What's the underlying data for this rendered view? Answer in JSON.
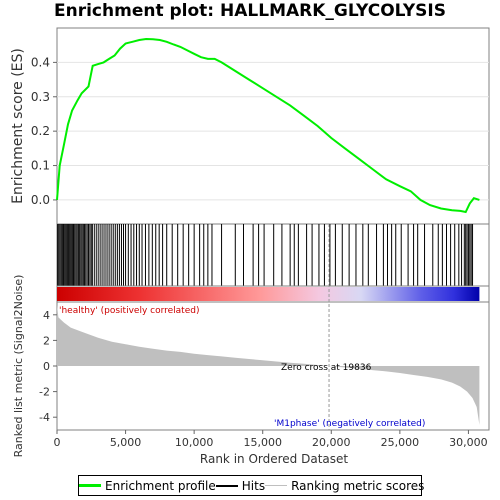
{
  "title": "Enrichment plot: HALLMARK_GLYCOLYSIS",
  "colors": {
    "enrichment": "#00ee00",
    "hits": "#000000",
    "metric_fill": "#bfbfbf",
    "positive_label": "#cc0000",
    "negative_label": "#0000cc"
  },
  "legend": {
    "items": [
      "Enrichment profile",
      "Hits",
      "Ranking metric scores"
    ]
  },
  "chart_data": [
    {
      "type": "line",
      "name": "enrichment-profile",
      "ylabel": "Enrichment score (ES)",
      "xlim": [
        0,
        31500
      ],
      "ylim": [
        -0.07,
        0.5
      ],
      "yticks": [
        0.0,
        0.1,
        0.2,
        0.3,
        0.4
      ],
      "ytick_labels": [
        "0.0",
        "0.1",
        "0.2",
        "0.3",
        "0.4"
      ],
      "grid": true,
      "x": [
        0,
        200,
        500,
        800,
        1100,
        1500,
        1800,
        2300,
        2600,
        3000,
        3400,
        3800,
        4200,
        4600,
        5000,
        5500,
        6000,
        6500,
        7000,
        7500,
        8000,
        8500,
        9000,
        9500,
        10000,
        10500,
        11000,
        11500,
        12000,
        13000,
        14000,
        15000,
        16000,
        17000,
        18000,
        19000,
        20000,
        21000,
        22000,
        23000,
        24000,
        25000,
        25800,
        26500,
        27200,
        28000,
        28800,
        29400,
        29800,
        30100,
        30400,
        30800
      ],
      "y": [
        0.0,
        0.1,
        0.16,
        0.22,
        0.26,
        0.29,
        0.31,
        0.33,
        0.39,
        0.395,
        0.4,
        0.41,
        0.42,
        0.44,
        0.455,
        0.46,
        0.465,
        0.468,
        0.467,
        0.465,
        0.46,
        0.452,
        0.445,
        0.435,
        0.425,
        0.415,
        0.41,
        0.41,
        0.4,
        0.375,
        0.35,
        0.325,
        0.3,
        0.275,
        0.245,
        0.215,
        0.18,
        0.15,
        0.12,
        0.09,
        0.06,
        0.04,
        0.025,
        0.0,
        -0.015,
        -0.025,
        -0.03,
        -0.032,
        -0.035,
        -0.01,
        0.005,
        0.0
      ]
    },
    {
      "type": "hits",
      "name": "gene-set-hits",
      "hit_positions": [
        50,
        130,
        220,
        310,
        390,
        470,
        560,
        640,
        720,
        800,
        880,
        960,
        1040,
        1120,
        1200,
        1290,
        1380,
        1470,
        1560,
        1650,
        1740,
        1830,
        1920,
        2010,
        2100,
        2200,
        2300,
        2400,
        2500,
        2600,
        2750,
        2900,
        3050,
        3200,
        3350,
        3500,
        3650,
        3800,
        3950,
        4100,
        4250,
        4400,
        4550,
        4700,
        4850,
        5000,
        5200,
        5400,
        5600,
        5800,
        6000,
        6200,
        6450,
        6700,
        6950,
        7200,
        7450,
        7700,
        8000,
        8400,
        8800,
        9200,
        9600,
        10000,
        10400,
        10700,
        11000,
        11300,
        12000,
        13000,
        13600,
        14300,
        14700,
        15100,
        15800,
        16400,
        17000,
        17300,
        17600,
        18200,
        18600,
        19100,
        19500,
        19900,
        20300,
        20800,
        21300,
        21800,
        22300,
        22700,
        23300,
        23800,
        24100,
        24400,
        24700,
        25100,
        25600,
        26000,
        26300,
        26800,
        27400,
        27800,
        28100,
        28400,
        28700,
        29000,
        29300,
        29500,
        29700,
        29800,
        29900,
        30000,
        30100,
        30200,
        30300
      ]
    },
    {
      "type": "area",
      "name": "ranked-list-metric",
      "xlabel": "Rank in Ordered Dataset",
      "ylabel": "Ranked list metric (Signal2Noise)",
      "xlim": [
        0,
        31500
      ],
      "ylim": [
        -5,
        5
      ],
      "xticks": [
        0,
        5000,
        10000,
        15000,
        20000,
        25000,
        30000
      ],
      "xtick_labels": [
        "0",
        "5,000",
        "10,000",
        "15,000",
        "20,000",
        "25,000",
        "30,000"
      ],
      "yticks": [
        -4,
        -2,
        0,
        2,
        4
      ],
      "ytick_labels": [
        "-4",
        "-2",
        "0",
        "2",
        "4"
      ],
      "x": [
        0,
        100,
        500,
        1000,
        2000,
        3000,
        4000,
        5000,
        6000,
        7000,
        8000,
        9000,
        10000,
        11000,
        12000,
        13000,
        14000,
        15000,
        16000,
        17000,
        18000,
        19000,
        19836,
        21000,
        22000,
        23000,
        24000,
        25000,
        26000,
        27000,
        28000,
        28800,
        29400,
        29900,
        30300,
        30600,
        30800
      ],
      "y": [
        4.8,
        3.8,
        3.4,
        3.0,
        2.6,
        2.2,
        1.9,
        1.7,
        1.5,
        1.35,
        1.2,
        1.1,
        0.95,
        0.85,
        0.75,
        0.65,
        0.55,
        0.45,
        0.35,
        0.25,
        0.17,
        0.08,
        0.0,
        -0.12,
        -0.22,
        -0.32,
        -0.42,
        -0.55,
        -0.7,
        -0.85,
        -1.05,
        -1.3,
        -1.6,
        -2.0,
        -2.5,
        -3.2,
        -4.6
      ],
      "annotations": {
        "zero_cross": "Zero cross at 19836",
        "zero_cross_rank": 19836,
        "positive": "'healthy' (positively correlated)",
        "negative": "'M1phase' (negatively correlated)"
      }
    }
  ]
}
